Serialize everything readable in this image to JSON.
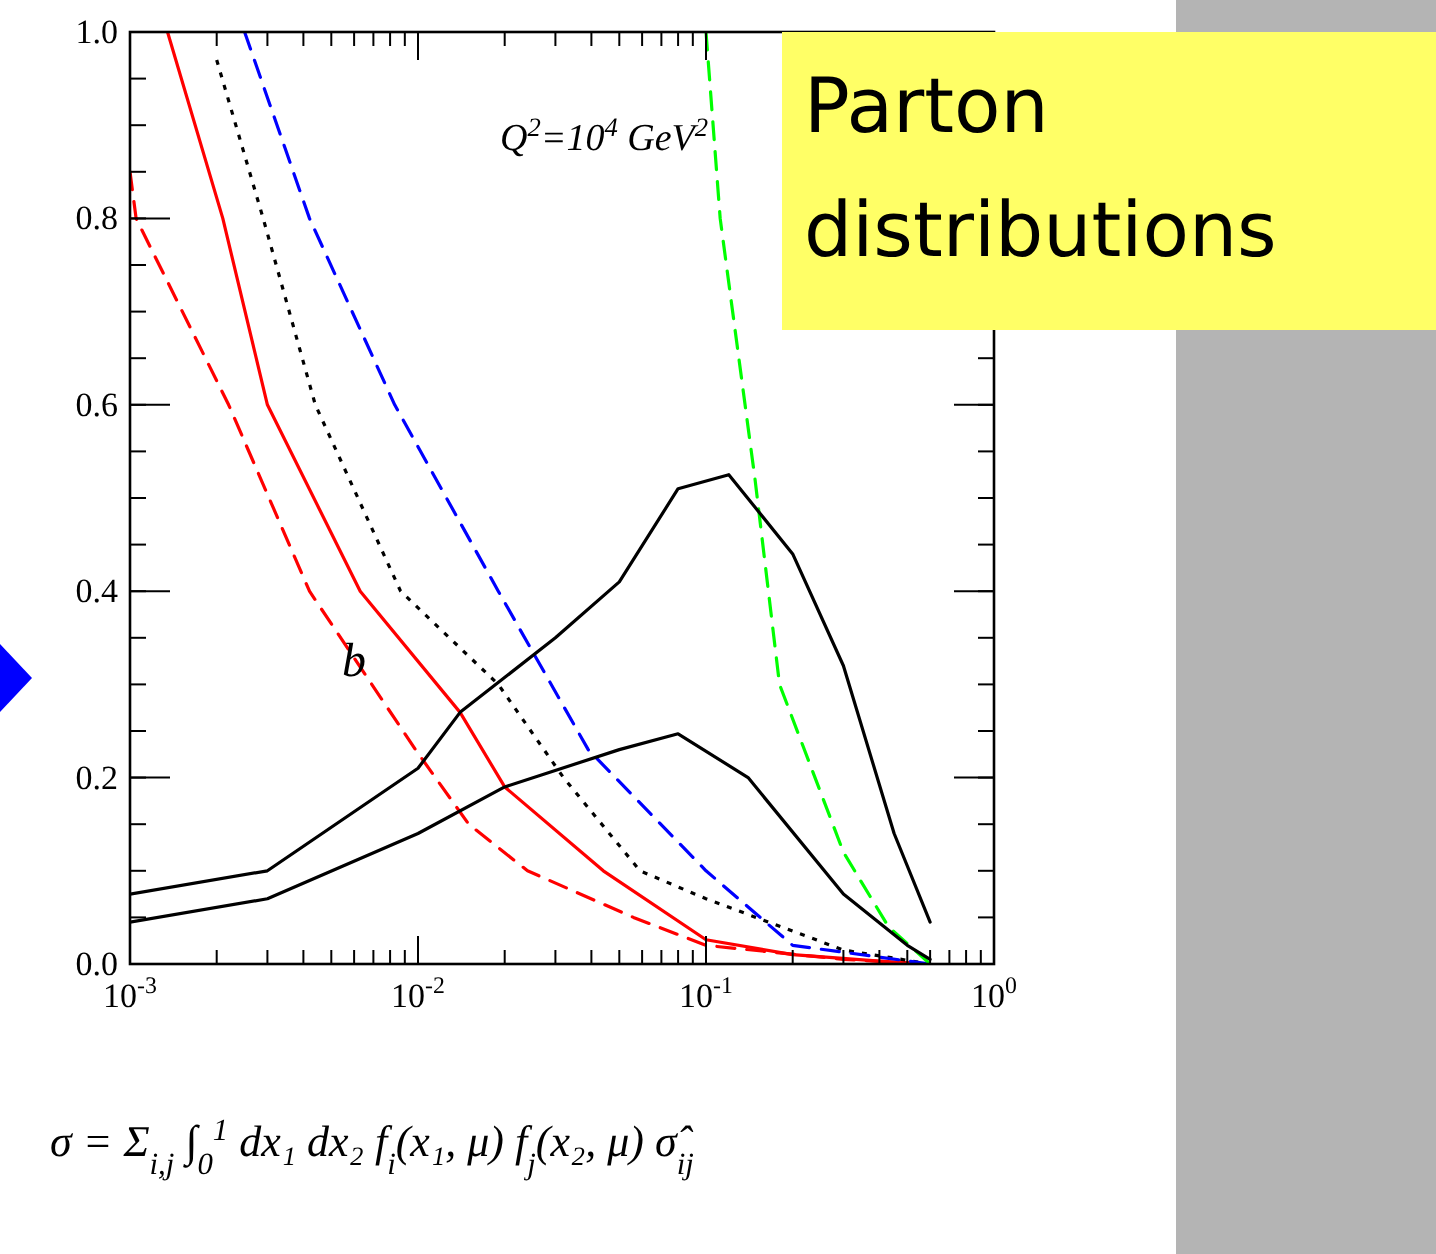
{
  "chart_data": {
    "type": "line",
    "title": "Parton distributions",
    "log": "x",
    "xlim": [
      0.001,
      1
    ],
    "ylim": [
      0,
      1
    ],
    "xticks": [
      {
        "value": 0.001,
        "label": "10$^{-3}$"
      },
      {
        "value": 0.01,
        "label": "10$^{-2}$"
      },
      {
        "value": 0.1,
        "label": "10$^{-1}$"
      },
      {
        "value": 1,
        "label": "10$^{0}$"
      }
    ],
    "yticks": [
      {
        "value": 0,
        "label": "0.0"
      },
      {
        "value": 0.2,
        "label": "0.2"
      },
      {
        "value": 0.4,
        "label": "0.4"
      },
      {
        "value": 0.6,
        "label": "0.6"
      },
      {
        "value": 0.8,
        "label": "0.8"
      },
      {
        "value": 1,
        "label": "1.0"
      }
    ],
    "series": [
      {
        "color": "#ff0000",
        "line_style": "solid",
        "x": [
          0.00135,
          0.0021,
          0.003,
          0.0063,
          0.014,
          0.02,
          0.044,
          0.1,
          0.2,
          0.4,
          0.6
        ],
        "values": [
          1.0,
          0.8,
          0.6,
          0.4,
          0.27,
          0.19,
          0.1,
          0.026,
          0.01,
          0.003,
          0.0
        ]
      },
      {
        "color": "#ff0000",
        "line_style": "dashed",
        "x": [
          0.001,
          0.00105,
          0.0022,
          0.0042,
          0.0098,
          0.015,
          0.024,
          0.056,
          0.1,
          0.3,
          0.6
        ],
        "values": [
          0.85,
          0.8,
          0.6,
          0.4,
          0.23,
          0.15,
          0.1,
          0.05,
          0.02,
          0.005,
          0.0
        ]
      },
      {
        "color": "#000000",
        "line_style": "dotted",
        "x": [
          0.002,
          0.0029,
          0.0044,
          0.0087,
          0.019,
          0.032,
          0.059,
          0.1,
          0.3,
          0.6
        ],
        "values": [
          0.97,
          0.8,
          0.6,
          0.4,
          0.3,
          0.2,
          0.1,
          0.07,
          0.015,
          0.0
        ]
      },
      {
        "color": "#0000ff",
        "line_style": "dashed",
        "x": [
          0.0025,
          0.0042,
          0.0083,
          0.019,
          0.039,
          0.1,
          0.2,
          0.6
        ],
        "values": [
          1.0,
          0.8,
          0.6,
          0.4,
          0.23,
          0.1,
          0.02,
          0.0
        ]
      },
      {
        "color": "#00ff00",
        "line_style": "dashed",
        "x": [
          0.1,
          0.112,
          0.148,
          0.18,
          0.3,
          0.43,
          0.6
        ],
        "values": [
          1.0,
          0.8,
          0.52,
          0.3,
          0.12,
          0.04,
          0.0
        ]
      },
      {
        "color": "#000000",
        "line_style": "solid",
        "x": [
          0.001,
          0.003,
          0.01,
          0.014,
          0.03,
          0.05,
          0.08,
          0.12,
          0.2,
          0.3,
          0.45,
          0.6
        ],
        "values": [
          0.075,
          0.1,
          0.21,
          0.27,
          0.35,
          0.41,
          0.51,
          0.525,
          0.44,
          0.32,
          0.14,
          0.045
        ]
      },
      {
        "color": "#000000",
        "line_style": "solid",
        "x": [
          0.001,
          0.003,
          0.01,
          0.02,
          0.05,
          0.08,
          0.14,
          0.3,
          0.5,
          0.6
        ],
        "values": [
          0.045,
          0.07,
          0.14,
          0.19,
          0.23,
          0.247,
          0.2,
          0.075,
          0.02,
          0.005
        ]
      }
    ],
    "annotations": [
      "Q$^{2}$=10$^{4}$  GeV$^{2}$",
      "b",
      "σ = Σ$_{i,j}$ ∫$_{0}$$^{1}$ dx₁ dx₂ f$_{i}$(x₁, μ) f$_{j}$(x₂, μ) σ̂$_{ij}$"
    ]
  }
}
